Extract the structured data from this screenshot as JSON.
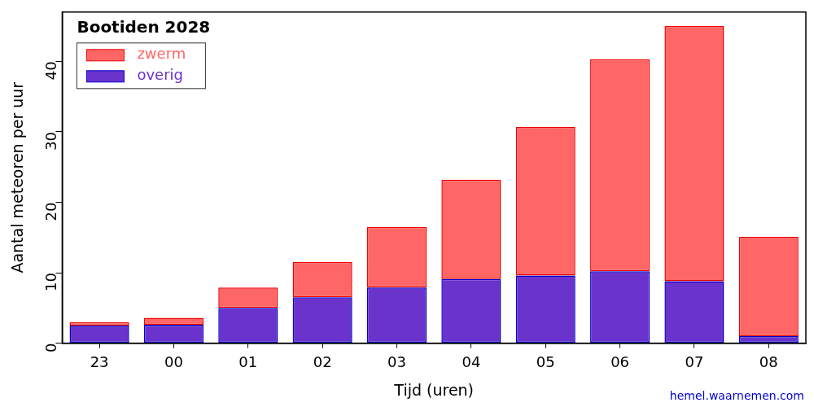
{
  "chart_data": {
    "type": "bar",
    "title": "Bootiden 2028",
    "x_label": "Tijd (uren)",
    "y_label": "Aantal meteoren per uur",
    "annotations": [
      "hemel.waarnemen.com"
    ],
    "categories": [
      "23",
      "00",
      "01",
      "02",
      "03",
      "04",
      "05",
      "06",
      "07",
      "08"
    ],
    "series": [
      {
        "name": "zwerm",
        "color": "#ff6666",
        "values": [
          0.5,
          1.0,
          2.9,
          5.0,
          8.6,
          14.1,
          21.1,
          30.1,
          36.2,
          14.1
        ]
      },
      {
        "name": "overig",
        "color": "#6a33cc",
        "values": [
          2.5,
          2.6,
          5.0,
          6.5,
          7.9,
          9.1,
          9.6,
          10.2,
          8.8,
          1.0
        ]
      }
    ],
    "stacked": true,
    "legend": "upper left",
    "grid": false,
    "ylim": [
      0,
      47
    ],
    "yticks": [
      0,
      10,
      20,
      30,
      40
    ]
  }
}
